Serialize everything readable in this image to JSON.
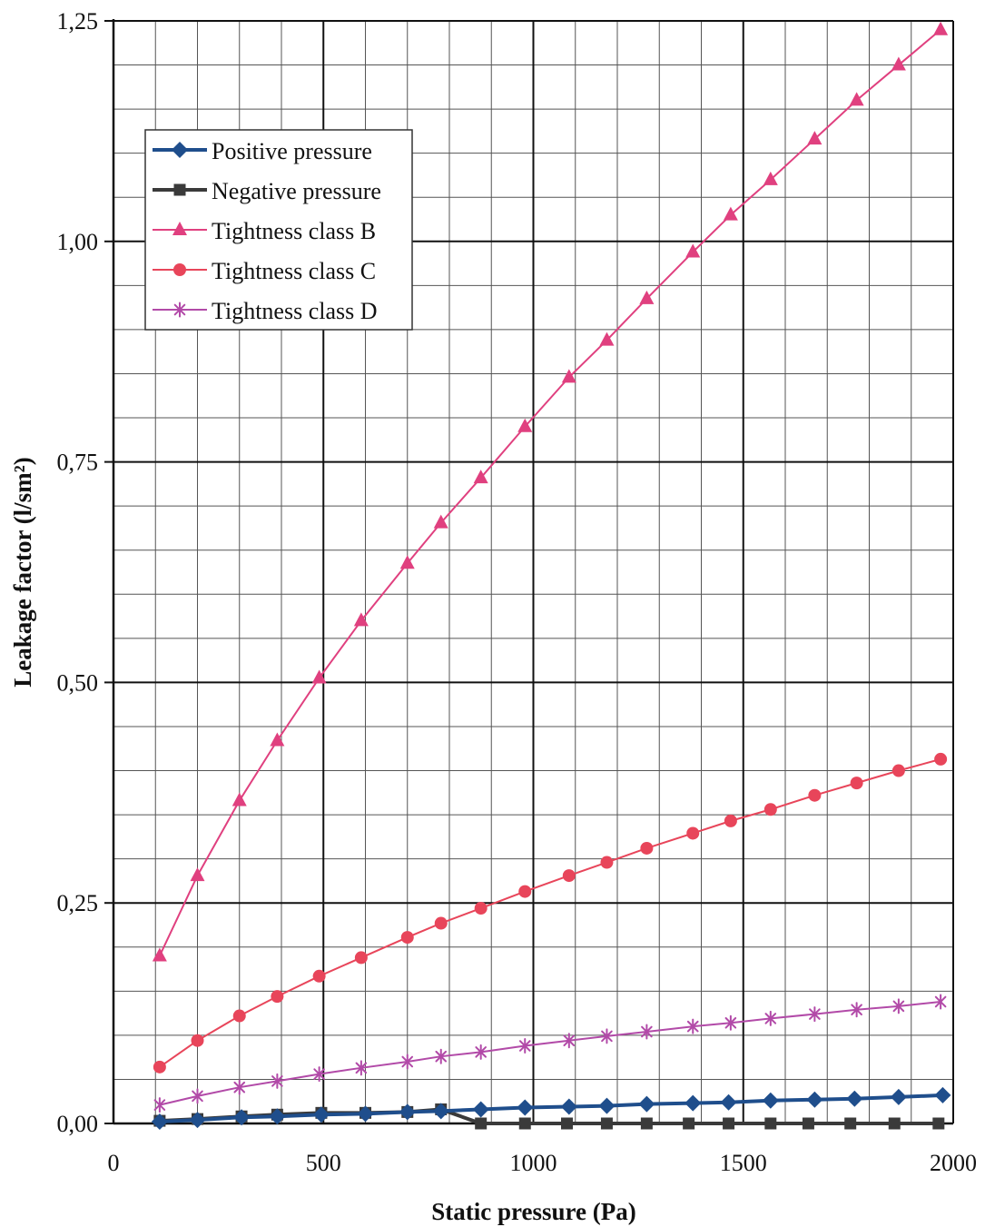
{
  "chart_data": {
    "type": "line",
    "xlabel": "Static pressure (Pa)",
    "ylabel": "Leakage factor (l/sm²)",
    "xlim": [
      0,
      2000
    ],
    "ylim": [
      0,
      1.25
    ],
    "x_ticks": [
      0,
      500,
      1000,
      1500,
      2000
    ],
    "x_tick_labels": [
      "0",
      "500",
      "1000",
      "1500",
      "2000"
    ],
    "y_ticks": [
      0,
      0.25,
      0.5,
      0.75,
      1.0,
      1.25
    ],
    "y_tick_labels": [
      "0,00",
      "0,25",
      "0,50",
      "0,75",
      "1,00",
      "1,25"
    ],
    "grid": true,
    "minor_grid_steps": {
      "x": 100,
      "y": 0.05
    },
    "legend_position": "top-left",
    "series": [
      {
        "name": "Positive pressure",
        "color": "#1f4e8c",
        "marker": "diamond",
        "x": [
          110,
          200,
          305,
          390,
          495,
          600,
          700,
          780,
          875,
          980,
          1085,
          1175,
          1270,
          1380,
          1465,
          1565,
          1670,
          1765,
          1870,
          1975
        ],
        "y": [
          0.002,
          0.004,
          0.007,
          0.008,
          0.01,
          0.011,
          0.013,
          0.014,
          0.016,
          0.018,
          0.019,
          0.02,
          0.022,
          0.023,
          0.024,
          0.026,
          0.027,
          0.028,
          0.03,
          0.032
        ]
      },
      {
        "name": "Negative pressure",
        "color": "#3a3a3a",
        "marker": "square",
        "x": [
          110,
          200,
          305,
          390,
          495,
          600,
          700,
          780,
          875,
          980,
          1080,
          1175,
          1270,
          1370,
          1465,
          1565,
          1655,
          1755,
          1860,
          1965
        ],
        "y": [
          0.003,
          0.005,
          0.008,
          0.01,
          0.012,
          0.012,
          0.013,
          0.016,
          0.0,
          0.0,
          0.0,
          0.0,
          0.0,
          0.0,
          0.0,
          0.0,
          0.0,
          0.0,
          0.0,
          0.0
        ]
      },
      {
        "name": "Tightness class B",
        "color": "#e0407f",
        "marker": "triangle",
        "x": [
          110,
          200,
          300,
          390,
          490,
          590,
          700,
          780,
          875,
          980,
          1085,
          1175,
          1270,
          1380,
          1470,
          1565,
          1670,
          1770,
          1870,
          1970
        ],
        "y": [
          0.19,
          0.281,
          0.366,
          0.434,
          0.505,
          0.57,
          0.635,
          0.681,
          0.732,
          0.79,
          0.846,
          0.888,
          0.935,
          0.988,
          1.03,
          1.07,
          1.116,
          1.16,
          1.2,
          1.24
        ]
      },
      {
        "name": "Tightness class C",
        "color": "#e8455a",
        "marker": "circle",
        "x": [
          110,
          200,
          300,
          390,
          490,
          590,
          700,
          780,
          875,
          980,
          1085,
          1175,
          1270,
          1380,
          1470,
          1565,
          1670,
          1770,
          1870,
          1970
        ],
        "y": [
          0.064,
          0.094,
          0.122,
          0.144,
          0.167,
          0.188,
          0.211,
          0.227,
          0.244,
          0.263,
          0.281,
          0.296,
          0.312,
          0.329,
          0.343,
          0.356,
          0.372,
          0.386,
          0.4,
          0.413
        ]
      },
      {
        "name": "Tightness class D",
        "color": "#b24aa8",
        "marker": "asterisk",
        "x": [
          110,
          200,
          300,
          390,
          490,
          590,
          700,
          780,
          875,
          980,
          1085,
          1175,
          1270,
          1380,
          1470,
          1565,
          1670,
          1770,
          1870,
          1970
        ],
        "y": [
          0.021,
          0.031,
          0.041,
          0.048,
          0.056,
          0.063,
          0.07,
          0.076,
          0.081,
          0.088,
          0.094,
          0.099,
          0.104,
          0.11,
          0.114,
          0.119,
          0.124,
          0.129,
          0.133,
          0.138
        ]
      }
    ]
  }
}
